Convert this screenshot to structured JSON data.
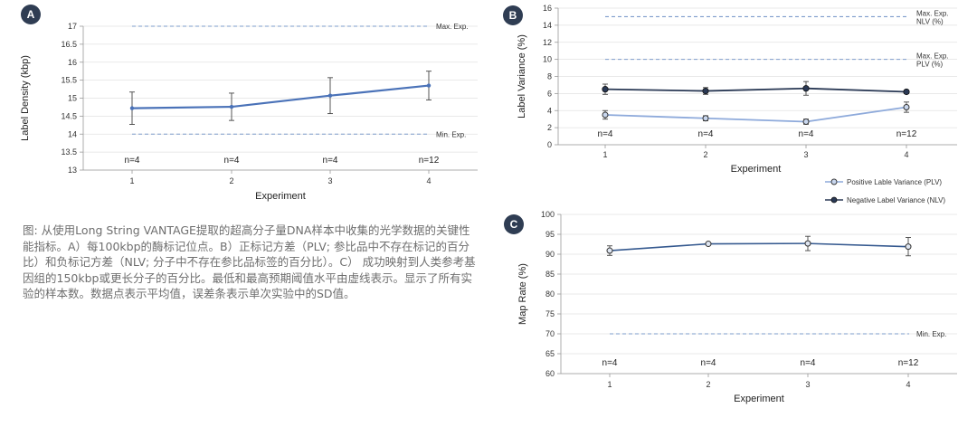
{
  "caption": "图: 从使用Long String VANTAGE提取的超高分子量DNA样本中收集的光学数据的关键性能指标。A）每100kbp的酶标记位点。B）正标记方差（PLV; 参比品中不存在标记的百分比）和负标记方差（NLV; 分子中不存在参比品标签的百分比）。C） 成功映射到人类参考基因组的150kbp或更长分子的百分比。最低和最高预期阈值水平由虚线表示。显示了所有实验的样本数。数据点表示平均值，误差条表示单次实验中的SD值。",
  "colors": {
    "badge": "#2f3d53",
    "series_a": "#4a72b8",
    "plv": "#8eaadb",
    "nlv": "#2a3955",
    "series_c": "#35598f",
    "dash": "#7d9ccb"
  },
  "chart_data": [
    {
      "id": "A",
      "type": "line",
      "categories": [
        "1",
        "2",
        "3",
        "4"
      ],
      "series": [
        {
          "values": [
            14.72,
            14.76,
            15.07,
            15.35
          ],
          "errors": [
            0.45,
            0.38,
            0.5,
            0.4
          ]
        }
      ],
      "xlabel": "Experiment",
      "ylabel": "Label Density (kbp)",
      "ylim": [
        13,
        17.5
      ],
      "yticks": [
        "13",
        "13.5",
        "14",
        "14.5",
        "15",
        "15.5",
        "16",
        "16.5",
        "17"
      ],
      "n_labels": [
        "n=4",
        "n=4",
        "n=4",
        "n=12"
      ],
      "ref_lines": [
        {
          "value": 17,
          "label": "Max. Exp."
        },
        {
          "value": 14,
          "label": "Min. Exp."
        }
      ]
    },
    {
      "id": "B",
      "type": "line",
      "categories": [
        "1",
        "2",
        "3",
        "4"
      ],
      "series": [
        {
          "name": "Positive Lable Variance (PLV)",
          "values": [
            3.5,
            3.1,
            2.7,
            4.4
          ],
          "errors": [
            0.5,
            0.3,
            0.3,
            0.6
          ]
        },
        {
          "name": "Negative Label Variance (NLV)",
          "values": [
            6.5,
            6.3,
            6.6,
            6.2
          ],
          "errors": [
            0.6,
            0.4,
            0.8,
            0.2
          ]
        }
      ],
      "xlabel": "Experiment",
      "ylabel": "Label Variance (%)",
      "ylim": [
        0,
        16
      ],
      "yticks": [
        "0",
        "2",
        "4",
        "6",
        "8",
        "10",
        "12",
        "14",
        "16"
      ],
      "n_labels": [
        "n=4",
        "n=4",
        "n=4",
        "n=12"
      ],
      "ref_lines": [
        {
          "value": 15,
          "label_lines": [
            "Max. Exp.",
            "NLV (%)"
          ]
        },
        {
          "value": 10,
          "label_lines": [
            "Max. Exp.",
            "PLV (%)"
          ]
        }
      ],
      "legend_position": "bottom-right"
    },
    {
      "id": "C",
      "type": "line",
      "categories": [
        "1",
        "2",
        "3",
        "4"
      ],
      "series": [
        {
          "values": [
            90.9,
            92.6,
            92.7,
            91.9
          ],
          "errors": [
            1.2,
            0.3,
            1.8,
            2.3
          ]
        }
      ],
      "xlabel": "Experiment",
      "ylabel": "Map Rate (%)",
      "ylim": [
        60,
        100
      ],
      "yticks": [
        "60",
        "65",
        "70",
        "75",
        "80",
        "85",
        "90",
        "95",
        "100"
      ],
      "n_labels": [
        "n=4",
        "n=4",
        "n=4",
        "n=12"
      ],
      "ref_lines": [
        {
          "value": 70,
          "label": "Min. Exp."
        }
      ]
    }
  ]
}
